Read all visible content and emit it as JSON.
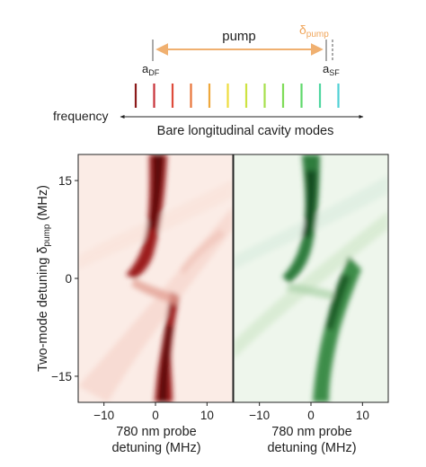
{
  "schematic": {
    "pump_label": "pump",
    "delta_pump_label": {
      "base": "δ",
      "sub": "pump"
    },
    "a_df_label": {
      "base": "a",
      "sub": "DF"
    },
    "a_sf_label": {
      "base": "a",
      "sub": "SF"
    },
    "frequency_label": "frequency",
    "modes_label": "Bare longitudinal cavity modes",
    "pump_color": "#f0b070",
    "mode_colors": [
      "#8b1a1a",
      "#c8323a",
      "#de4b3b",
      "#e8743a",
      "#eea83c",
      "#eedd3e",
      "#cde341",
      "#a6e04c",
      "#7fdc58",
      "#5fd86b",
      "#4fd6a0",
      "#4fd0d6"
    ]
  },
  "chart_data": [
    {
      "type": "heatmap",
      "panel": "left",
      "colormap": "reds",
      "xlabel": [
        "780 nm probe",
        "detuning (MHz)"
      ],
      "ylabel": {
        "base": "Two-mode detuning δ",
        "sub": "pump",
        "unit": " (MHz)"
      },
      "xlim": [
        -15,
        15
      ],
      "ylim": [
        -19,
        19
      ],
      "xticks": [
        -10,
        0,
        10
      ],
      "yticks": [
        15,
        0,
        -15
      ],
      "xtick_labels": [
        "−10",
        "0",
        "10"
      ],
      "ytick_labels": [
        "15",
        "0",
        "−15"
      ],
      "features": {
        "description_points": [
          {
            "delta_pump": 18,
            "probe_center": -0.5,
            "strength": 1.0
          },
          {
            "delta_pump": 8,
            "probe_center": -1.5,
            "strength": 0.85
          },
          {
            "delta_pump": 2,
            "probe_center": -3.0,
            "strength": 0.5
          },
          {
            "delta_pump": -3,
            "probe_center": 1.0,
            "strength": 0.6
          },
          {
            "delta_pump": -10,
            "probe_center": 0.5,
            "strength": 0.9
          },
          {
            "delta_pump": -18,
            "probe_center": 0.0,
            "strength": 1.0
          }
        ]
      }
    },
    {
      "type": "heatmap",
      "panel": "right",
      "colormap": "greens",
      "xlabel": [
        "780 nm probe",
        "detuning (MHz)"
      ],
      "xlim": [
        -15,
        15
      ],
      "ylim": [
        -19,
        19
      ],
      "xticks": [
        -10,
        0,
        10
      ],
      "xtick_labels": [
        "−10",
        "0",
        "10"
      ]
    }
  ]
}
